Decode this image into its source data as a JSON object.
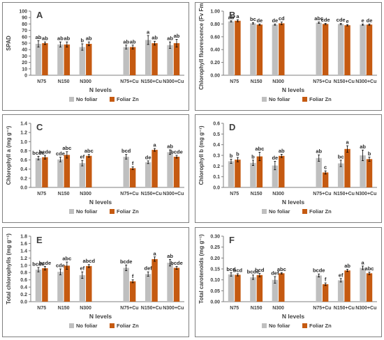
{
  "colors": {
    "no_foliar": "#bfbfbf",
    "foliar_zn": "#c55a11",
    "axis": "#7f7f7f",
    "text": "#404040",
    "error": "#000000"
  },
  "chart_data": [
    {
      "panel": "A",
      "type": "bar",
      "ylabel": "SPAD",
      "xlabel": "N levels",
      "categories": [
        "N75",
        "N150",
        "N300",
        "N75+Cu",
        "N150+Cu",
        "N300+Cu"
      ],
      "ylim": [
        0,
        100
      ],
      "yticks": [
        0,
        10,
        20,
        30,
        40,
        50,
        60,
        70,
        80,
        90,
        100
      ],
      "tick_decimals": 0,
      "legend": {
        "position": "bottom",
        "entries": [
          "No foliar",
          "Foliar Zn"
        ]
      },
      "series": [
        {
          "name": "No foliar",
          "values": [
            49,
            48,
            44,
            44,
            55,
            47
          ],
          "errors": [
            5,
            4,
            5,
            3,
            7,
            5
          ],
          "letters": [
            "ab",
            "ab",
            "b",
            "ab",
            "a",
            "ab"
          ]
        },
        {
          "name": "Foliar Zn",
          "values": [
            50,
            48,
            49,
            44,
            50,
            50
          ],
          "errors": [
            2,
            4,
            3,
            3,
            3,
            6
          ],
          "letters": [
            "ab",
            "ab",
            "ab",
            "ab",
            "ab",
            "ab"
          ]
        }
      ]
    },
    {
      "panel": "B",
      "type": "bar",
      "ylabel": "Chlorophyll fluorescence (Fv Fm⁻¹)",
      "xlabel": "N levels",
      "categories": [
        "N75",
        "N150",
        "N300",
        "N75+Cu",
        "N150+Cu",
        "N300+Cu"
      ],
      "ylim": [
        0,
        1
      ],
      "yticks": [
        0,
        0.2,
        0.4,
        0.6,
        0.8,
        1.0
      ],
      "tick_decimals": 2,
      "legend": {
        "position": "bottom",
        "entries": [
          "No foliar",
          "Foliar Zn"
        ]
      },
      "series": [
        {
          "name": "No foliar",
          "values": [
            0.84,
            0.81,
            0.79,
            0.82,
            0.8,
            0.79
          ],
          "errors": [
            0.01,
            0.01,
            0.01,
            0.01,
            0.01,
            0.01
          ],
          "letters": [
            "ab",
            "bc",
            "de",
            "abc",
            "cde",
            "e"
          ]
        },
        {
          "name": "Foliar Zn",
          "values": [
            0.85,
            0.79,
            0.81,
            0.8,
            0.78,
            0.79
          ],
          "errors": [
            0.015,
            0.01,
            0.02,
            0.01,
            0.01,
            0.01
          ],
          "letters": [
            "a",
            "de",
            "cd",
            "cde",
            "e",
            "de"
          ]
        }
      ]
    },
    {
      "panel": "C",
      "type": "bar",
      "ylabel": "Chlorophyll a (mg g⁻¹)",
      "xlabel": "N levels",
      "categories": [
        "N75",
        "N150",
        "N300",
        "N75+Cu",
        "N150+Cu",
        "N300+Cu"
      ],
      "ylim": [
        0,
        1.4
      ],
      "yticks": [
        0,
        0.2,
        0.4,
        0.6,
        0.8,
        1.0,
        1.2,
        1.4
      ],
      "tick_decimals": 1,
      "legend": {
        "position": "bottom",
        "entries": [
          "No foliar",
          "Foliar Zn"
        ]
      },
      "series": [
        {
          "name": "No foliar",
          "values": [
            0.64,
            0.61,
            0.53,
            0.67,
            0.55,
            0.77
          ],
          "errors": [
            0.04,
            0.05,
            0.06,
            0.05,
            0.03,
            0.05
          ],
          "letters": [
            "bcde",
            "cde",
            "ef",
            "bcd",
            "de",
            "ab"
          ]
        },
        {
          "name": "Foliar Zn",
          "values": [
            0.66,
            0.71,
            0.69,
            0.42,
            0.82,
            0.67
          ],
          "errors": [
            0.04,
            0.07,
            0.03,
            0.03,
            0.03,
            0.03
          ],
          "letters": [
            "bcde",
            "abc",
            "abc",
            "f",
            "a",
            "bcde"
          ]
        }
      ]
    },
    {
      "panel": "D",
      "type": "bar",
      "ylabel": "Chlorophyll b (mg g⁻¹)",
      "xlabel": "N levels",
      "categories": [
        "N75",
        "N150",
        "N300",
        "N75+Cu",
        "N150+Cu",
        "N300+Cu"
      ],
      "ylim": [
        0,
        0.6
      ],
      "yticks": [
        0,
        0.1,
        0.2,
        0.3,
        0.4,
        0.5,
        0.6
      ],
      "tick_decimals": 1,
      "legend": {
        "position": "bottom",
        "entries": [
          "No foliar",
          "Foliar Zn"
        ]
      },
      "series": [
        {
          "name": "No foliar",
          "values": [
            0.245,
            0.23,
            0.205,
            0.275,
            0.225,
            0.3
          ],
          "errors": [
            0.02,
            0.025,
            0.04,
            0.03,
            0.03,
            0.05
          ],
          "letters": [
            "b",
            "b",
            "de",
            "ab",
            "bc",
            "ab"
          ]
        },
        {
          "name": "Foliar Zn",
          "values": [
            0.26,
            0.29,
            0.295,
            0.14,
            0.36,
            0.265
          ],
          "errors": [
            0.02,
            0.04,
            0.015,
            0.015,
            0.03,
            0.02
          ],
          "letters": [
            "b",
            "abc",
            "ab",
            "c",
            "a",
            "b"
          ]
        }
      ]
    },
    {
      "panel": "E",
      "type": "bar",
      "ylabel": "Total chlorophylls (mg g⁻¹)",
      "xlabel": "N levels",
      "categories": [
        "N75",
        "N150",
        "N300",
        "N75+Cu",
        "N150+Cu",
        "N300+Cu"
      ],
      "ylim": [
        0,
        1.8
      ],
      "yticks": [
        0,
        0.2,
        0.4,
        0.6,
        0.8,
        1.0,
        1.2,
        1.4,
        1.6,
        1.8
      ],
      "tick_decimals": 1,
      "legend": {
        "position": "bottom",
        "entries": [
          "No foliar",
          "Foliar Zn"
        ]
      },
      "series": [
        {
          "name": "No foliar",
          "values": [
            0.88,
            0.82,
            0.73,
            0.93,
            0.76,
            1.07
          ],
          "errors": [
            0.06,
            0.08,
            0.09,
            0.08,
            0.06,
            0.09
          ],
          "letters": [
            "bcde",
            "cde",
            "ef",
            "bcde",
            "def",
            "ab"
          ]
        },
        {
          "name": "Foliar Zn",
          "values": [
            0.92,
            0.99,
            0.98,
            0.56,
            1.17,
            0.93
          ],
          "errors": [
            0.05,
            0.1,
            0.04,
            0.04,
            0.06,
            0.04
          ],
          "letters": [
            "bcde",
            "abc",
            "abcd",
            "f",
            "a",
            "bcde"
          ]
        }
      ]
    },
    {
      "panel": "F",
      "type": "bar",
      "ylabel": "Total carotenoids (mg g⁻¹)",
      "xlabel": "N levels",
      "categories": [
        "N75",
        "N150",
        "N300",
        "N75+Cu",
        "N150+Cu",
        "N300+Cu"
      ],
      "ylim": [
        0,
        0.3
      ],
      "yticks": [
        0,
        0.05,
        0.1,
        0.15,
        0.2,
        0.25,
        0.3
      ],
      "tick_decimals": 2,
      "legend": {
        "position": "bottom",
        "entries": [
          "No foliar",
          "Foliar Zn"
        ]
      },
      "series": [
        {
          "name": "No foliar",
          "values": [
            0.125,
            0.112,
            0.1,
            0.12,
            0.098,
            0.155
          ],
          "errors": [
            0.008,
            0.01,
            0.015,
            0.007,
            0.008,
            0.008
          ],
          "letters": [
            "bcd",
            "bcde",
            "def",
            "bcde",
            "ef",
            "a"
          ]
        },
        {
          "name": "Foliar Zn",
          "values": [
            0.123,
            0.122,
            0.13,
            0.08,
            0.143,
            0.13
          ],
          "errors": [
            0.005,
            0.008,
            0.003,
            0.006,
            0.005,
            0.006
          ],
          "letters": [
            "bcd",
            "bcd",
            "abc",
            "f",
            "ab",
            "abc"
          ]
        }
      ]
    }
  ]
}
